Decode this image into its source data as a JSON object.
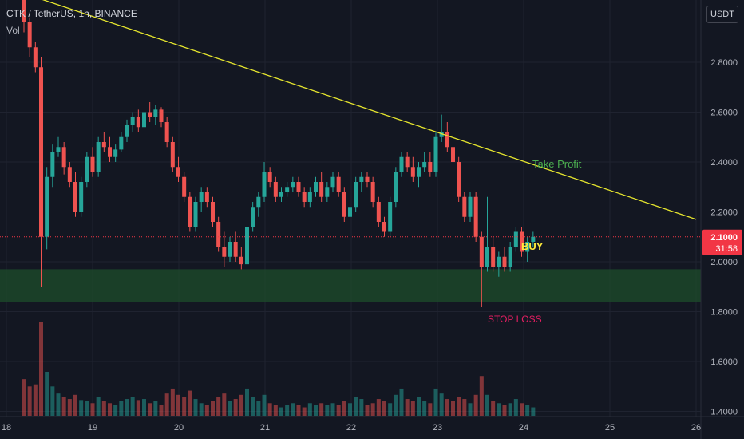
{
  "header": {
    "symbol_line": "CTK / TetherUS, 1h, BINANCE",
    "volume_label": "Vol",
    "currency_button": "USDT"
  },
  "colors": {
    "background": "#131722",
    "up": "#26a69a",
    "down": "#ef5350",
    "trendline": "#e6e62e",
    "zone": "#1e4d2b",
    "price_tag": "#f23645",
    "take_profit": "#4caf50",
    "buy": "#ffeb3b",
    "stop_loss": "#e91e63"
  },
  "annotations": {
    "take_profit": "Take Profit",
    "buy": "BUY",
    "stop_loss": "STOP LOSS"
  },
  "price_tag": {
    "price": "2.1000",
    "countdown": "31:58"
  },
  "chart_data": {
    "type": "candlestick",
    "x_ticks": [
      "18",
      "19",
      "20",
      "21",
      "22",
      "23",
      "24",
      "25",
      "26"
    ],
    "y_ticks": [
      "2.8000",
      "2.6000",
      "2.4000",
      "2.2000",
      "2.0000",
      "1.8000",
      "1.6000",
      "1.4000"
    ],
    "ylim": [
      1.38,
      3.02
    ],
    "last_price": 2.1,
    "support_zone": [
      1.84,
      1.97
    ],
    "trendline": {
      "start": [
        18.0,
        3.1
      ],
      "end": [
        26.0,
        2.17
      ]
    },
    "series": [
      {
        "name": "price",
        "ohlc": [
          [
            3.06,
            3.08,
            2.92,
            2.96
          ],
          [
            2.96,
            2.98,
            2.82,
            2.86
          ],
          [
            2.86,
            2.88,
            2.76,
            2.78
          ],
          [
            2.78,
            2.82,
            1.9,
            2.1
          ],
          [
            2.1,
            2.38,
            2.05,
            2.34
          ],
          [
            2.34,
            2.47,
            2.3,
            2.44
          ],
          [
            2.44,
            2.5,
            2.42,
            2.46
          ],
          [
            2.46,
            2.48,
            2.35,
            2.38
          ],
          [
            2.38,
            2.4,
            2.3,
            2.32
          ],
          [
            2.32,
            2.36,
            2.18,
            2.2
          ],
          [
            2.2,
            2.34,
            2.18,
            2.32
          ],
          [
            2.32,
            2.44,
            2.3,
            2.42
          ],
          [
            2.42,
            2.46,
            2.34,
            2.36
          ],
          [
            2.36,
            2.5,
            2.34,
            2.48
          ],
          [
            2.48,
            2.52,
            2.44,
            2.46
          ],
          [
            2.46,
            2.5,
            2.4,
            2.42
          ],
          [
            2.42,
            2.47,
            2.4,
            2.45
          ],
          [
            2.45,
            2.52,
            2.44,
            2.5
          ],
          [
            2.5,
            2.57,
            2.48,
            2.55
          ],
          [
            2.55,
            2.6,
            2.52,
            2.58
          ],
          [
            2.58,
            2.61,
            2.52,
            2.54
          ],
          [
            2.54,
            2.62,
            2.52,
            2.6
          ],
          [
            2.6,
            2.64,
            2.56,
            2.58
          ],
          [
            2.58,
            2.63,
            2.55,
            2.61
          ],
          [
            2.61,
            2.62,
            2.54,
            2.56
          ],
          [
            2.56,
            2.58,
            2.46,
            2.48
          ],
          [
            2.48,
            2.5,
            2.36,
            2.38
          ],
          [
            2.38,
            2.42,
            2.32,
            2.34
          ],
          [
            2.34,
            2.36,
            2.24,
            2.26
          ],
          [
            2.26,
            2.28,
            2.12,
            2.14
          ],
          [
            2.14,
            2.26,
            2.12,
            2.24
          ],
          [
            2.24,
            2.3,
            2.2,
            2.28
          ],
          [
            2.28,
            2.3,
            2.22,
            2.24
          ],
          [
            2.24,
            2.26,
            2.14,
            2.16
          ],
          [
            2.16,
            2.18,
            2.04,
            2.06
          ],
          [
            2.06,
            2.12,
            1.98,
            2.02
          ],
          [
            2.02,
            2.1,
            2.0,
            2.08
          ],
          [
            2.08,
            2.12,
            2.0,
            2.02
          ],
          [
            2.02,
            2.06,
            1.97,
            1.99
          ],
          [
            1.99,
            2.16,
            1.98,
            2.14
          ],
          [
            2.14,
            2.24,
            2.12,
            2.22
          ],
          [
            2.22,
            2.28,
            2.18,
            2.26
          ],
          [
            2.26,
            2.4,
            2.24,
            2.36
          ],
          [
            2.36,
            2.38,
            2.3,
            2.32
          ],
          [
            2.32,
            2.34,
            2.24,
            2.26
          ],
          [
            2.26,
            2.3,
            2.24,
            2.28
          ],
          [
            2.28,
            2.32,
            2.26,
            2.3
          ],
          [
            2.3,
            2.34,
            2.28,
            2.32
          ],
          [
            2.32,
            2.34,
            2.26,
            2.28
          ],
          [
            2.28,
            2.3,
            2.22,
            2.24
          ],
          [
            2.24,
            2.3,
            2.22,
            2.28
          ],
          [
            2.28,
            2.34,
            2.26,
            2.32
          ],
          [
            2.32,
            2.36,
            2.24,
            2.26
          ],
          [
            2.26,
            2.32,
            2.24,
            2.3
          ],
          [
            2.3,
            2.36,
            2.28,
            2.34
          ],
          [
            2.34,
            2.36,
            2.26,
            2.28
          ],
          [
            2.28,
            2.3,
            2.16,
            2.18
          ],
          [
            2.18,
            2.26,
            2.14,
            2.22
          ],
          [
            2.22,
            2.34,
            2.2,
            2.32
          ],
          [
            2.32,
            2.36,
            2.28,
            2.34
          ],
          [
            2.34,
            2.36,
            2.3,
            2.32
          ],
          [
            2.32,
            2.34,
            2.22,
            2.24
          ],
          [
            2.24,
            2.26,
            2.14,
            2.16
          ],
          [
            2.16,
            2.18,
            2.1,
            2.12
          ],
          [
            2.12,
            2.26,
            2.1,
            2.24
          ],
          [
            2.24,
            2.38,
            2.22,
            2.36
          ],
          [
            2.36,
            2.44,
            2.34,
            2.42
          ],
          [
            2.42,
            2.44,
            2.36,
            2.38
          ],
          [
            2.38,
            2.42,
            2.32,
            2.34
          ],
          [
            2.34,
            2.4,
            2.3,
            2.38
          ],
          [
            2.38,
            2.44,
            2.36,
            2.4
          ],
          [
            2.4,
            2.44,
            2.34,
            2.36
          ],
          [
            2.36,
            2.52,
            2.34,
            2.5
          ],
          [
            2.5,
            2.59,
            2.48,
            2.52
          ],
          [
            2.52,
            2.56,
            2.44,
            2.46
          ],
          [
            2.46,
            2.48,
            2.36,
            2.4
          ],
          [
            2.4,
            2.42,
            2.24,
            2.26
          ],
          [
            2.26,
            2.28,
            2.16,
            2.18
          ],
          [
            2.18,
            2.28,
            2.16,
            2.26
          ],
          [
            2.26,
            2.28,
            2.08,
            2.1
          ],
          [
            2.1,
            2.12,
            1.82,
            1.98
          ],
          [
            1.98,
            2.26,
            1.96,
            2.06
          ],
          [
            2.06,
            2.1,
            1.96,
            1.98
          ],
          [
            1.98,
            2.04,
            1.94,
            2.02
          ],
          [
            2.02,
            2.06,
            1.96,
            1.98
          ],
          [
            1.98,
            2.08,
            1.96,
            2.06
          ],
          [
            2.06,
            2.14,
            2.04,
            2.12
          ],
          [
            2.12,
            2.14,
            2.02,
            2.04
          ],
          [
            2.04,
            2.1,
            2.0,
            2.08
          ],
          [
            2.08,
            2.12,
            2.06,
            2.1
          ]
        ],
        "volume": [
          0.35,
          0.28,
          0.3,
          0.9,
          0.42,
          0.28,
          0.22,
          0.18,
          0.16,
          0.2,
          0.15,
          0.14,
          0.12,
          0.18,
          0.14,
          0.12,
          0.1,
          0.14,
          0.16,
          0.18,
          0.15,
          0.16,
          0.12,
          0.14,
          0.1,
          0.22,
          0.26,
          0.2,
          0.18,
          0.24,
          0.16,
          0.12,
          0.1,
          0.14,
          0.18,
          0.22,
          0.14,
          0.16,
          0.2,
          0.26,
          0.18,
          0.14,
          0.2,
          0.12,
          0.1,
          0.08,
          0.1,
          0.12,
          0.1,
          0.08,
          0.12,
          0.1,
          0.12,
          0.1,
          0.12,
          0.1,
          0.14,
          0.12,
          0.18,
          0.16,
          0.1,
          0.12,
          0.16,
          0.14,
          0.12,
          0.2,
          0.26,
          0.16,
          0.14,
          0.18,
          0.14,
          0.12,
          0.26,
          0.22,
          0.16,
          0.14,
          0.18,
          0.16,
          0.12,
          0.2,
          0.38,
          0.2,
          0.14,
          0.12,
          0.1,
          0.12,
          0.16,
          0.12,
          0.1,
          0.08
        ]
      }
    ]
  }
}
